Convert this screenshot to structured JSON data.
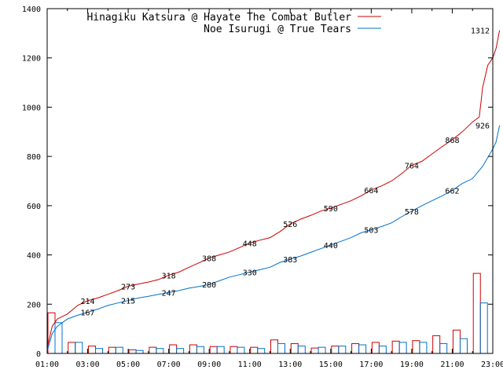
{
  "chart_data": {
    "type": "line",
    "title": "",
    "xlabel": "",
    "ylabel": "",
    "ylim": [
      0,
      1400
    ],
    "xlim": [
      "01:00",
      "23:00"
    ],
    "grid": false,
    "legend_placement": "top",
    "x_ticks": [
      "01:00",
      "03:00",
      "05:00",
      "07:00",
      "09:00",
      "11:00",
      "13:00",
      "15:00",
      "17:00",
      "19:00",
      "21:00",
      "23:00"
    ],
    "y_ticks": [
      0,
      200,
      400,
      600,
      800,
      1000,
      1200,
      1400
    ],
    "series": [
      {
        "name": "Hinagiku Katsura @ Hayate The Combat Butler",
        "color": "#cc0000",
        "cumulative": [
          [
            "01:00",
            20
          ],
          [
            "01:15",
            110
          ],
          [
            "01:30",
            140
          ],
          [
            "02:00",
            160
          ],
          [
            "02:30",
            195
          ],
          [
            "03:00",
            214
          ],
          [
            "03:30",
            225
          ],
          [
            "04:00",
            240
          ],
          [
            "04:30",
            255
          ],
          [
            "05:00",
            273
          ],
          [
            "05:30",
            282
          ],
          [
            "06:00",
            290
          ],
          [
            "06:30",
            300
          ],
          [
            "07:00",
            318
          ],
          [
            "07:30",
            330
          ],
          [
            "08:00",
            350
          ],
          [
            "08:30",
            368
          ],
          [
            "09:00",
            388
          ],
          [
            "09:30",
            400
          ],
          [
            "10:00",
            412
          ],
          [
            "10:30",
            430
          ],
          [
            "11:00",
            448
          ],
          [
            "11:30",
            460
          ],
          [
            "12:00",
            470
          ],
          [
            "12:30",
            495
          ],
          [
            "13:00",
            526
          ],
          [
            "13:30",
            545
          ],
          [
            "14:00",
            560
          ],
          [
            "14:30",
            578
          ],
          [
            "15:00",
            590
          ],
          [
            "15:30",
            605
          ],
          [
            "16:00",
            620
          ],
          [
            "16:30",
            640
          ],
          [
            "17:00",
            664
          ],
          [
            "17:30",
            680
          ],
          [
            "18:00",
            700
          ],
          [
            "18:30",
            730
          ],
          [
            "19:00",
            764
          ],
          [
            "19:30",
            780
          ],
          [
            "20:00",
            810
          ],
          [
            "20:30",
            840
          ],
          [
            "21:00",
            868
          ],
          [
            "21:30",
            900
          ],
          [
            "22:00",
            940
          ],
          [
            "22:20",
            960
          ],
          [
            "22:30",
            1080
          ],
          [
            "22:45",
            1170
          ],
          [
            "23:00",
            1200
          ],
          [
            "23:10",
            1240
          ],
          [
            "23:20",
            1312
          ]
        ],
        "hourly": [
          [
            "01:00",
            165
          ],
          [
            "02:00",
            45
          ],
          [
            "03:00",
            30
          ],
          [
            "04:00",
            25
          ],
          [
            "05:00",
            15
          ],
          [
            "06:00",
            25
          ],
          [
            "07:00",
            35
          ],
          [
            "08:00",
            35
          ],
          [
            "09:00",
            28
          ],
          [
            "10:00",
            28
          ],
          [
            "11:00",
            25
          ],
          [
            "12:00",
            55
          ],
          [
            "13:00",
            40
          ],
          [
            "14:00",
            22
          ],
          [
            "15:00",
            30
          ],
          [
            "16:00",
            40
          ],
          [
            "17:00",
            45
          ],
          [
            "18:00",
            50
          ],
          [
            "19:00",
            52
          ],
          [
            "20:00",
            72
          ],
          [
            "21:00",
            95
          ],
          [
            "22:00",
            325
          ]
        ]
      },
      {
        "name": "Noe Isurugi @ True Tears",
        "color": "#0070cc",
        "cumulative": [
          [
            "01:00",
            10
          ],
          [
            "01:15",
            80
          ],
          [
            "01:30",
            110
          ],
          [
            "02:00",
            140
          ],
          [
            "02:30",
            155
          ],
          [
            "03:00",
            167
          ],
          [
            "03:30",
            180
          ],
          [
            "04:00",
            195
          ],
          [
            "04:30",
            205
          ],
          [
            "05:00",
            215
          ],
          [
            "05:30",
            225
          ],
          [
            "06:00",
            232
          ],
          [
            "06:30",
            240
          ],
          [
            "07:00",
            247
          ],
          [
            "07:30",
            255
          ],
          [
            "08:00",
            265
          ],
          [
            "08:30",
            272
          ],
          [
            "09:00",
            280
          ],
          [
            "09:30",
            295
          ],
          [
            "10:00",
            310
          ],
          [
            "10:30",
            320
          ],
          [
            "11:00",
            330
          ],
          [
            "11:30",
            340
          ],
          [
            "12:00",
            350
          ],
          [
            "12:30",
            370
          ],
          [
            "13:00",
            383
          ],
          [
            "13:30",
            395
          ],
          [
            "14:00",
            410
          ],
          [
            "14:30",
            425
          ],
          [
            "15:00",
            440
          ],
          [
            "15:30",
            455
          ],
          [
            "16:00",
            470
          ],
          [
            "16:30",
            490
          ],
          [
            "17:00",
            503
          ],
          [
            "17:30",
            515
          ],
          [
            "18:00",
            530
          ],
          [
            "18:30",
            555
          ],
          [
            "19:00",
            578
          ],
          [
            "19:30",
            600
          ],
          [
            "20:00",
            620
          ],
          [
            "20:30",
            640
          ],
          [
            "21:00",
            662
          ],
          [
            "21:30",
            690
          ],
          [
            "22:00",
            710
          ],
          [
            "22:30",
            760
          ],
          [
            "23:00",
            830
          ],
          [
            "23:10",
            860
          ],
          [
            "23:20",
            926
          ]
        ],
        "hourly": [
          [
            "01:00",
            125
          ],
          [
            "02:00",
            45
          ],
          [
            "03:00",
            20
          ],
          [
            "04:00",
            25
          ],
          [
            "05:00",
            12
          ],
          [
            "06:00",
            20
          ],
          [
            "07:00",
            20
          ],
          [
            "08:00",
            28
          ],
          [
            "09:00",
            28
          ],
          [
            "10:00",
            25
          ],
          [
            "11:00",
            20
          ],
          [
            "12:00",
            40
          ],
          [
            "13:00",
            30
          ],
          [
            "14:00",
            25
          ],
          [
            "15:00",
            30
          ],
          [
            "16:00",
            35
          ],
          [
            "17:00",
            30
          ],
          [
            "18:00",
            45
          ],
          [
            "19:00",
            45
          ],
          [
            "20:00",
            40
          ],
          [
            "21:00",
            60
          ],
          [
            "22:00",
            205
          ]
        ]
      }
    ],
    "annotations": [
      {
        "series": 0,
        "x": "03:00",
        "y": 214,
        "text": "214"
      },
      {
        "series": 0,
        "x": "05:00",
        "y": 273,
        "text": "273"
      },
      {
        "series": 0,
        "x": "07:00",
        "y": 318,
        "text": "318"
      },
      {
        "series": 0,
        "x": "09:00",
        "y": 388,
        "text": "388"
      },
      {
        "series": 0,
        "x": "11:00",
        "y": 448,
        "text": "448"
      },
      {
        "series": 0,
        "x": "13:00",
        "y": 526,
        "text": "526"
      },
      {
        "series": 0,
        "x": "15:00",
        "y": 590,
        "text": "590"
      },
      {
        "series": 0,
        "x": "17:00",
        "y": 664,
        "text": "664"
      },
      {
        "series": 0,
        "x": "19:00",
        "y": 764,
        "text": "764"
      },
      {
        "series": 0,
        "x": "21:00",
        "y": 868,
        "text": "868"
      },
      {
        "series": 0,
        "x": "23:00",
        "y": 1312,
        "text": "1312"
      },
      {
        "series": 1,
        "x": "03:00",
        "y": 167,
        "text": "167"
      },
      {
        "series": 1,
        "x": "05:00",
        "y": 215,
        "text": "215"
      },
      {
        "series": 1,
        "x": "07:00",
        "y": 247,
        "text": "247"
      },
      {
        "series": 1,
        "x": "09:00",
        "y": 280,
        "text": "280"
      },
      {
        "series": 1,
        "x": "11:00",
        "y": 330,
        "text": "330"
      },
      {
        "series": 1,
        "x": "13:00",
        "y": 383,
        "text": "383"
      },
      {
        "series": 1,
        "x": "15:00",
        "y": 440,
        "text": "440"
      },
      {
        "series": 1,
        "x": "17:00",
        "y": 503,
        "text": "503"
      },
      {
        "series": 1,
        "x": "19:00",
        "y": 578,
        "text": "578"
      },
      {
        "series": 1,
        "x": "21:00",
        "y": 662,
        "text": "662"
      },
      {
        "series": 1,
        "x": "23:00",
        "y": 926,
        "text": "926"
      }
    ]
  }
}
